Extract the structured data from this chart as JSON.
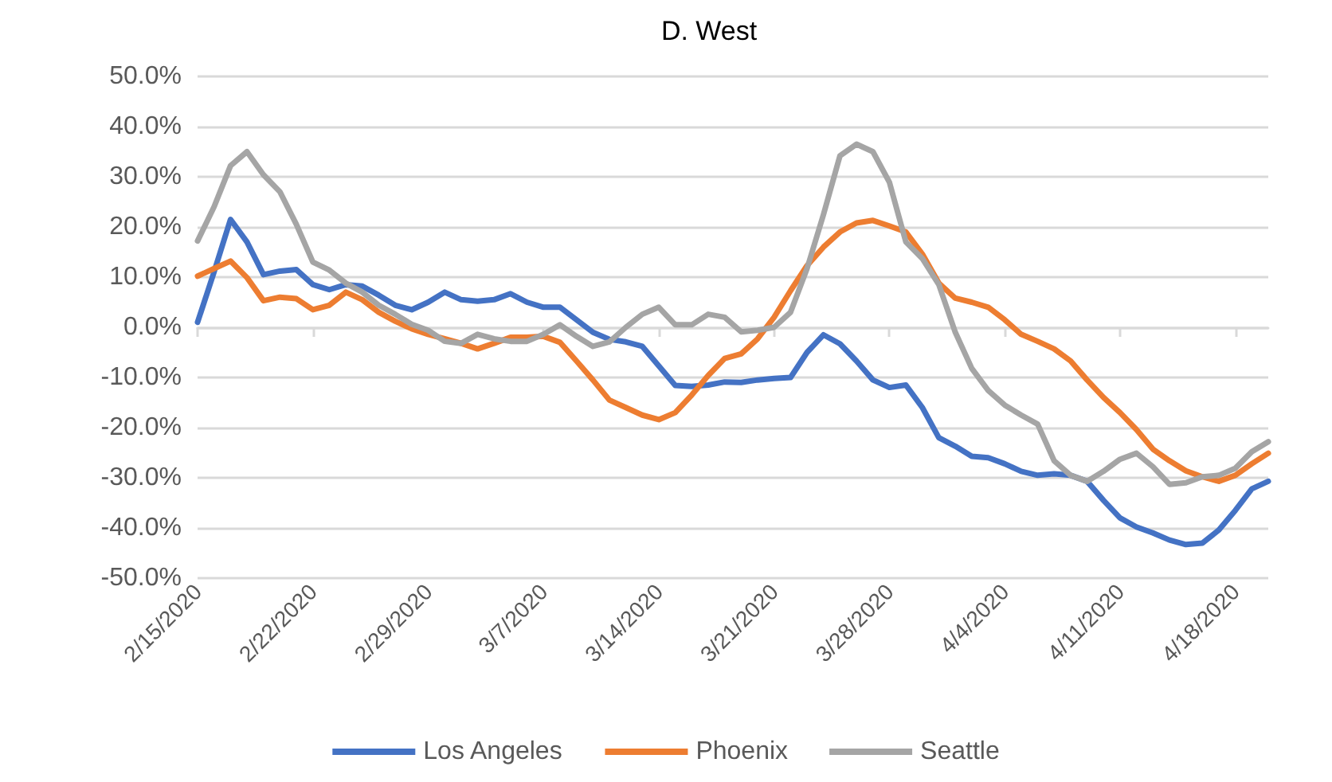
{
  "chart_data": {
    "type": "line",
    "title": "D. West",
    "x": [
      "2020-02-15",
      "2020-02-16",
      "2020-02-17",
      "2020-02-18",
      "2020-02-19",
      "2020-02-20",
      "2020-02-21",
      "2020-02-22",
      "2020-02-23",
      "2020-02-24",
      "2020-02-25",
      "2020-02-26",
      "2020-02-27",
      "2020-02-28",
      "2020-02-29",
      "2020-03-01",
      "2020-03-02",
      "2020-03-03",
      "2020-03-04",
      "2020-03-05",
      "2020-03-06",
      "2020-03-07",
      "2020-03-08",
      "2020-03-09",
      "2020-03-10",
      "2020-03-11",
      "2020-03-12",
      "2020-03-13",
      "2020-03-14",
      "2020-03-15",
      "2020-03-16",
      "2020-03-17",
      "2020-03-18",
      "2020-03-19",
      "2020-03-20",
      "2020-03-21",
      "2020-03-22",
      "2020-03-23",
      "2020-03-24",
      "2020-03-25",
      "2020-03-26",
      "2020-03-27",
      "2020-03-28",
      "2020-03-29",
      "2020-03-30",
      "2020-03-31",
      "2020-04-01",
      "2020-04-02",
      "2020-04-03",
      "2020-04-04",
      "2020-04-05",
      "2020-04-06",
      "2020-04-07",
      "2020-04-08",
      "2020-04-09",
      "2020-04-10",
      "2020-04-11",
      "2020-04-12",
      "2020-04-13",
      "2020-04-14",
      "2020-04-15",
      "2020-04-16",
      "2020-04-17",
      "2020-04-18",
      "2020-04-19",
      "2020-04-20"
    ],
    "series": [
      {
        "name": "Los Angeles",
        "color": "#4472c4",
        "values": [
          1,
          11,
          21.5,
          17,
          10.5,
          11.2,
          11.5,
          8.5,
          7.5,
          8.5,
          8.2,
          6.4,
          4.4,
          3.5,
          5,
          7,
          5.5,
          5.2,
          5.5,
          6.7,
          5,
          4,
          4,
          1.5,
          -1,
          -2.4,
          -2.9,
          -3.8,
          -7.7,
          -11.6,
          -11.8,
          -11.5,
          -10.9,
          -11,
          -10.5,
          -10.2,
          -10,
          -5,
          -1.5,
          -3.3,
          -6.7,
          -10.5,
          -12,
          -11.5,
          -16,
          -22,
          -23.7,
          -25.7,
          -26,
          -27.2,
          -28.7,
          -29.5,
          -29.2,
          -29.5,
          -30.7,
          -34.5,
          -38,
          -39.8,
          -41,
          -42.4,
          -43.3,
          -43,
          -40.4,
          -36.5,
          -32.2,
          -30.7
        ]
      },
      {
        "name": "Phoenix",
        "color": "#ed7d31",
        "values": [
          10.2,
          11.7,
          13.2,
          9.9,
          5.3,
          6,
          5.7,
          3.5,
          4.4,
          7,
          5.5,
          3,
          1.2,
          -0.3,
          -1.4,
          -2.3,
          -3.2,
          -4.3,
          -3.2,
          -2,
          -2,
          -1.8,
          -3,
          -6.7,
          -10.5,
          -14.5,
          -16,
          -17.5,
          -18.4,
          -17,
          -13.5,
          -9.6,
          -6.2,
          -5.3,
          -2.3,
          2,
          7.3,
          12.3,
          16,
          19,
          20.8,
          21.3,
          20.2,
          19,
          14.6,
          8.8,
          5.8,
          5,
          4,
          1.5,
          -1.4,
          -2.8,
          -4.3,
          -6.7,
          -10.5,
          -14,
          -17,
          -20.4,
          -24.3,
          -26.6,
          -28.6,
          -29.8,
          -30.7,
          -29.5,
          -27.2,
          -25.1
        ]
      },
      {
        "name": "Seattle",
        "color": "#a5a5a5",
        "values": [
          17.2,
          24,
          32.2,
          35,
          30.4,
          27,
          20.5,
          13,
          11.4,
          8.8,
          7,
          4.4,
          2.6,
          0.6,
          -0.6,
          -2.8,
          -3.2,
          -1.4,
          -2.3,
          -2.8,
          -2.8,
          -1.4,
          0.5,
          -1.8,
          -3.8,
          -2.9,
          0,
          2.6,
          4,
          0.5,
          0.5,
          2.6,
          2,
          -0.9,
          -0.6,
          0,
          3,
          11.7,
          22.5,
          34.2,
          36.5,
          35,
          28.9,
          17,
          13.7,
          8.5,
          -1,
          -8.2,
          -12.6,
          -15.5,
          -17.5,
          -19.3,
          -26.6,
          -29.5,
          -30.7,
          -28.7,
          -26.3,
          -25.1,
          -27.8,
          -31.3,
          -31,
          -29.8,
          -29.5,
          -28.1,
          -24.8,
          -22.8
        ]
      }
    ],
    "xlim": [
      "2020-02-15",
      "2020-04-20"
    ],
    "xticks": [
      {
        "value": "2020-02-15",
        "label": "2/15/2020"
      },
      {
        "value": "2020-02-22",
        "label": "2/22/2020"
      },
      {
        "value": "2020-02-29",
        "label": "2/29/2020"
      },
      {
        "value": "2020-03-07",
        "label": "3/7/2020"
      },
      {
        "value": "2020-03-14",
        "label": "3/14/2020"
      },
      {
        "value": "2020-03-21",
        "label": "3/21/2020"
      },
      {
        "value": "2020-03-28",
        "label": "3/28/2020"
      },
      {
        "value": "2020-04-04",
        "label": "4/4/2020"
      },
      {
        "value": "2020-04-11",
        "label": "4/11/2020"
      },
      {
        "value": "2020-04-18",
        "label": "4/18/2020"
      }
    ],
    "ylim": [
      -50,
      50
    ],
    "yticks": [
      {
        "value": -50,
        "label": "-50.0%"
      },
      {
        "value": -40,
        "label": "-40.0%"
      },
      {
        "value": -30,
        "label": "-30.0%"
      },
      {
        "value": -20,
        "label": "-20.0%"
      },
      {
        "value": -10,
        "label": "-10.0%"
      },
      {
        "value": 0,
        "label": "0.0%"
      },
      {
        "value": 10,
        "label": "10.0%"
      },
      {
        "value": 20,
        "label": "20.0%"
      },
      {
        "value": 30,
        "label": "30.0%"
      },
      {
        "value": 40,
        "label": "40.0%"
      },
      {
        "value": 50,
        "label": "50.0%"
      }
    ],
    "grid": "y",
    "legend": "bottom",
    "marker": "none",
    "line_style": "solid"
  }
}
